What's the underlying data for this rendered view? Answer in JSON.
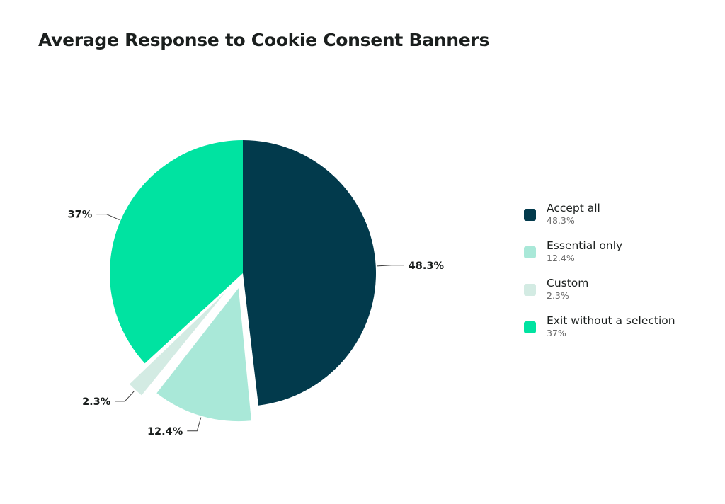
{
  "chart_data": {
    "type": "pie",
    "title": "Average Response to Cookie Consent Banners",
    "slices": [
      {
        "label": "Accept all",
        "value": 48.3,
        "value_label": "48.3%",
        "color": "#023a4c",
        "exploded": false
      },
      {
        "label": "Essential only",
        "value": 12.4,
        "value_label": "12.4%",
        "color": "#a9e8d8",
        "exploded": true
      },
      {
        "label": "Custom",
        "value": 2.3,
        "value_label": "2.3%",
        "color": "#d3ebe3",
        "exploded": true
      },
      {
        "label": "Exit without a selection",
        "value": 37,
        "value_label": "37%",
        "color": "#00e3a1",
        "exploded": false
      }
    ],
    "start": "12 o'clock",
    "direction": "clockwise",
    "legend_position": "right"
  }
}
